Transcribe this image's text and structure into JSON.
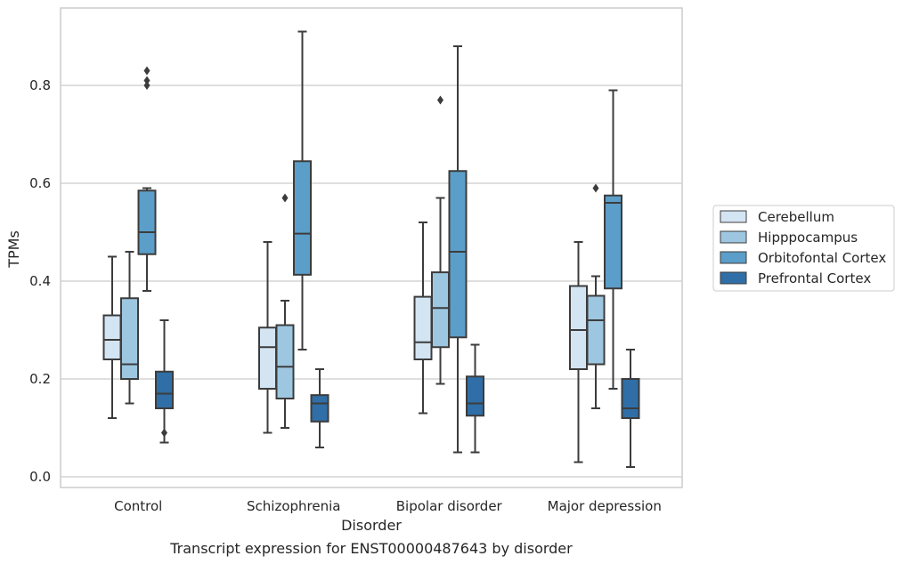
{
  "caption": "Transcript expression for ENST00000487643 by disorder",
  "chart_data": {
    "type": "box",
    "xlabel": "Disorder",
    "ylabel": "TPMs",
    "ylim": [
      -0.02,
      0.96
    ],
    "yticks": [
      0.0,
      0.2,
      0.4,
      0.6,
      0.8
    ],
    "ytick_labels": [
      "0.0",
      "0.2",
      "0.4",
      "0.6",
      "0.8"
    ],
    "grid": "horizontal",
    "legend_position": "right, outside plot",
    "categories": [
      "Control",
      "Schizophrenia",
      "Bipolar disorder",
      "Major depression"
    ],
    "series": [
      {
        "name": "Cerebellum",
        "color": "#d3e4f3",
        "boxes": [
          {
            "whislo": 0.12,
            "q1": 0.24,
            "med": 0.28,
            "q3": 0.33,
            "whishi": 0.45,
            "fliers": []
          },
          {
            "whislo": 0.09,
            "q1": 0.18,
            "med": 0.265,
            "q3": 0.305,
            "whishi": 0.48,
            "fliers": []
          },
          {
            "whislo": 0.13,
            "q1": 0.24,
            "med": 0.275,
            "q3": 0.368,
            "whishi": 0.52,
            "fliers": []
          },
          {
            "whislo": 0.03,
            "q1": 0.22,
            "med": 0.3,
            "q3": 0.39,
            "whishi": 0.48,
            "fliers": []
          }
        ]
      },
      {
        "name": "Hipppocampus",
        "color": "#9dc7e0",
        "boxes": [
          {
            "whislo": 0.15,
            "q1": 0.2,
            "med": 0.23,
            "q3": 0.365,
            "whishi": 0.46,
            "fliers": []
          },
          {
            "whislo": 0.1,
            "q1": 0.16,
            "med": 0.225,
            "q3": 0.31,
            "whishi": 0.36,
            "fliers": [
              0.57
            ]
          },
          {
            "whislo": 0.19,
            "q1": 0.265,
            "med": 0.345,
            "q3": 0.418,
            "whishi": 0.57,
            "fliers": [
              0.77
            ]
          },
          {
            "whislo": 0.14,
            "q1": 0.23,
            "med": 0.32,
            "q3": 0.37,
            "whishi": 0.41,
            "fliers": [
              0.59
            ]
          }
        ]
      },
      {
        "name": "Orbitofontal Cortex",
        "color": "#5b9ec9",
        "boxes": [
          {
            "whislo": 0.38,
            "q1": 0.455,
            "med": 0.5,
            "q3": 0.585,
            "whishi": 0.59,
            "fliers": [
              0.8,
              0.81,
              0.83
            ]
          },
          {
            "whislo": 0.26,
            "q1": 0.413,
            "med": 0.497,
            "q3": 0.645,
            "whishi": 0.91,
            "fliers": []
          },
          {
            "whislo": 0.05,
            "q1": 0.285,
            "med": 0.46,
            "q3": 0.625,
            "whishi": 0.88,
            "fliers": []
          },
          {
            "whislo": 0.18,
            "q1": 0.385,
            "med": 0.56,
            "q3": 0.575,
            "whishi": 0.79,
            "fliers": []
          }
        ]
      },
      {
        "name": "Prefrontal Cortex",
        "color": "#2f6ea6",
        "boxes": [
          {
            "whislo": 0.07,
            "q1": 0.14,
            "med": 0.17,
            "q3": 0.215,
            "whishi": 0.32,
            "fliers": [
              0.09
            ]
          },
          {
            "whislo": 0.06,
            "q1": 0.113,
            "med": 0.15,
            "q3": 0.167,
            "whishi": 0.22,
            "fliers": []
          },
          {
            "whislo": 0.05,
            "q1": 0.125,
            "med": 0.15,
            "q3": 0.205,
            "whishi": 0.27,
            "fliers": []
          },
          {
            "whislo": 0.02,
            "q1": 0.12,
            "med": 0.14,
            "q3": 0.2,
            "whishi": 0.26,
            "fliers": []
          }
        ]
      }
    ]
  }
}
